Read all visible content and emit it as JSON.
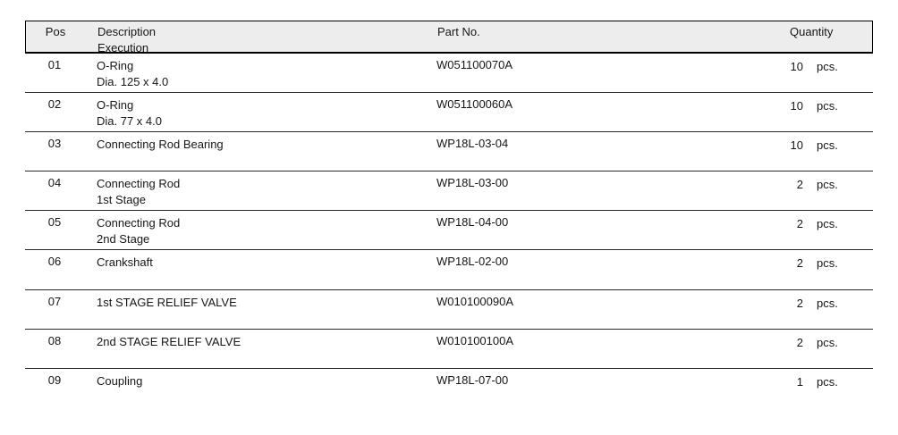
{
  "table": {
    "headers": {
      "pos": "Pos",
      "description_line1": "Description",
      "description_line2": "Execution",
      "part_no": "Part No.",
      "quantity": "Quantity"
    },
    "rows": [
      {
        "pos": "01",
        "description": "O-Ring",
        "execution": "Dia. 125 x 4.0",
        "part_no": "W051100070A",
        "qty": "10",
        "unit": "pcs."
      },
      {
        "pos": "02",
        "description": "O-Ring",
        "execution": "Dia. 77 x 4.0",
        "part_no": "W051100060A",
        "qty": "10",
        "unit": "pcs."
      },
      {
        "pos": "03",
        "description": "Connecting Rod Bearing",
        "execution": "",
        "part_no": "WP18L-03-04",
        "qty": "10",
        "unit": "pcs."
      },
      {
        "pos": "04",
        "description": "Connecting Rod",
        "execution": "1st Stage",
        "part_no": "WP18L-03-00",
        "qty": "2",
        "unit": "pcs."
      },
      {
        "pos": "05",
        "description": "Connecting Rod",
        "execution": "2nd Stage",
        "part_no": "WP18L-04-00",
        "qty": "2",
        "unit": "pcs."
      },
      {
        "pos": "06",
        "description": "Crankshaft",
        "execution": "",
        "part_no": "WP18L-02-00",
        "qty": "2",
        "unit": "pcs."
      },
      {
        "pos": "07",
        "description": "1st STAGE RELIEF VALVE",
        "execution": "",
        "part_no": "W010100090A",
        "qty": "2",
        "unit": "pcs."
      },
      {
        "pos": "08",
        "description": "2nd STAGE RELIEF VALVE",
        "execution": "",
        "part_no": "W010100100A",
        "qty": "2",
        "unit": "pcs."
      },
      {
        "pos": "09",
        "description": "Coupling",
        "execution": "",
        "part_no": "WP18L-07-00",
        "qty": "1",
        "unit": "pcs."
      }
    ],
    "colors": {
      "header_bg": "#ededed",
      "border": "#000000",
      "row_separator": "#2a2a2a",
      "text": "#161616",
      "background": "#ffffff"
    }
  }
}
